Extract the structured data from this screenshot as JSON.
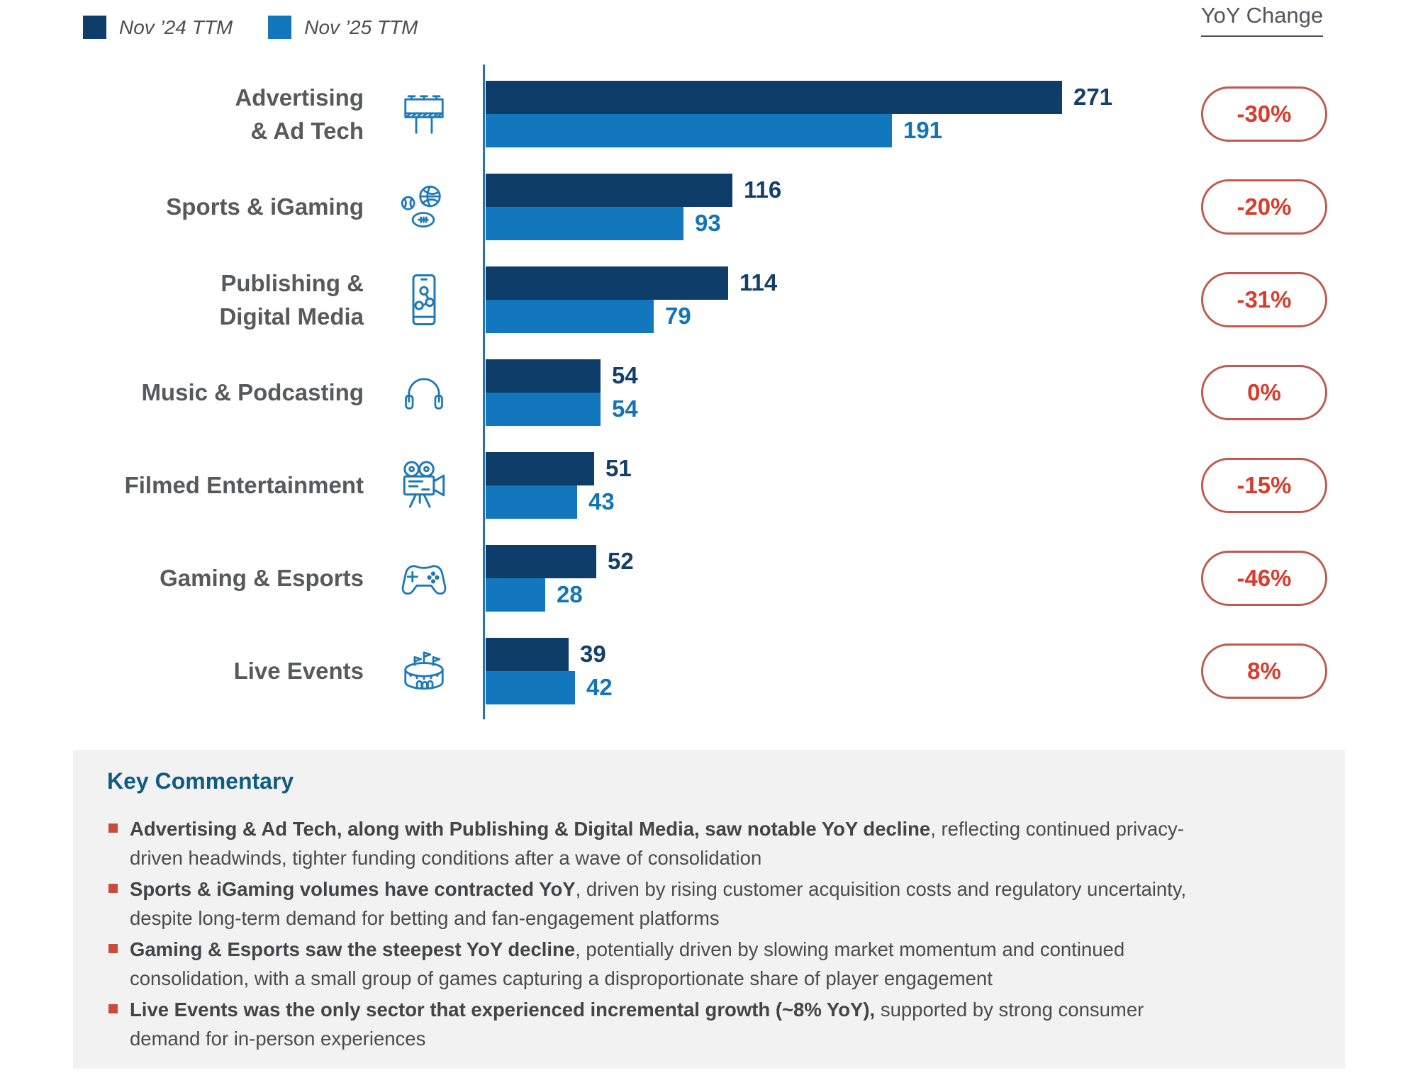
{
  "legend": {
    "items": [
      {
        "label": "Nov ’24 TTM",
        "color": "#0d3d68"
      },
      {
        "label": "Nov ’25 TTM",
        "color": "#1377bd"
      }
    ]
  },
  "yoy_header": "YoY Change",
  "chart_data": {
    "type": "bar",
    "orientation": "horizontal",
    "categories": [
      "Advertising & Ad Tech",
      "Sports & iGaming",
      "Publishing & Digital Media",
      "Music & Podcasting",
      "Filmed Entertainment",
      "Gaming & Esports",
      "Live Events"
    ],
    "series": [
      {
        "name": "Nov ’24 TTM",
        "color": "#0d3d68",
        "values": [
          271,
          116,
          114,
          54,
          51,
          52,
          39
        ]
      },
      {
        "name": "Nov ’25 TTM",
        "color": "#1377bd",
        "values": [
          191,
          93,
          79,
          54,
          43,
          28,
          42
        ]
      }
    ],
    "yoy_change": [
      "-30%",
      "-20%",
      "-31%",
      "0%",
      "-15%",
      "-46%",
      "8%"
    ],
    "xlim": [
      0,
      280
    ],
    "grid": false,
    "legend_position": "top-left",
    "value_labels": true
  },
  "rows": [
    {
      "label_lines": [
        "Advertising",
        "& Ad Tech"
      ],
      "icon": "billboard-icon",
      "v24": 271,
      "v25": 191,
      "yoy": "-30%"
    },
    {
      "label_lines": [
        "Sports & iGaming"
      ],
      "icon": "sports-balls-icon",
      "v24": 116,
      "v25": 93,
      "yoy": "-20%"
    },
    {
      "label_lines": [
        "Publishing &",
        "Digital Media"
      ],
      "icon": "phone-share-icon",
      "v24": 114,
      "v25": 79,
      "yoy": "-31%"
    },
    {
      "label_lines": [
        "Music & Podcasting"
      ],
      "icon": "headphones-icon",
      "v24": 54,
      "v25": 54,
      "yoy": "0%"
    },
    {
      "label_lines": [
        "Filmed Entertainment"
      ],
      "icon": "movie-camera-icon",
      "v24": 51,
      "v25": 43,
      "yoy": "-15%"
    },
    {
      "label_lines": [
        "Gaming & Esports"
      ],
      "icon": "game-controller-icon",
      "v24": 52,
      "v25": 28,
      "yoy": "-46%"
    },
    {
      "label_lines": [
        "Live Events"
      ],
      "icon": "stadium-icon",
      "v24": 39,
      "v25": 42,
      "yoy": "8%"
    }
  ],
  "badge_style": {
    "border_color": "#c05a50",
    "text_color": "#d93b2c"
  },
  "icon_color": "#2079b6",
  "axis_color": "#2273b0",
  "commentary": {
    "title": "Key Commentary",
    "bullets": [
      {
        "bold": "Advertising & Ad Tech, along with Publishing & Digital Media, saw notable YoY decline",
        "regular": ", reflecting continued privacy-driven headwinds, tighter funding conditions after a wave of consolidation"
      },
      {
        "bold": "Sports & iGaming volumes have contracted YoY",
        "regular": ", driven by rising customer acquisition costs and regulatory uncertainty, despite long-term demand for betting and fan-engagement platforms"
      },
      {
        "bold": "Gaming & Esports saw the steepest YoY decline",
        "regular": ", potentially driven by slowing market momentum and continued consolidation, with a small group of games capturing a disproportionate share of player engagement"
      },
      {
        "bold": "Live Events was the only sector that experienced incremental growth (~8% YoY),",
        "regular": " supported by strong consumer demand for in-person experiences"
      }
    ]
  }
}
